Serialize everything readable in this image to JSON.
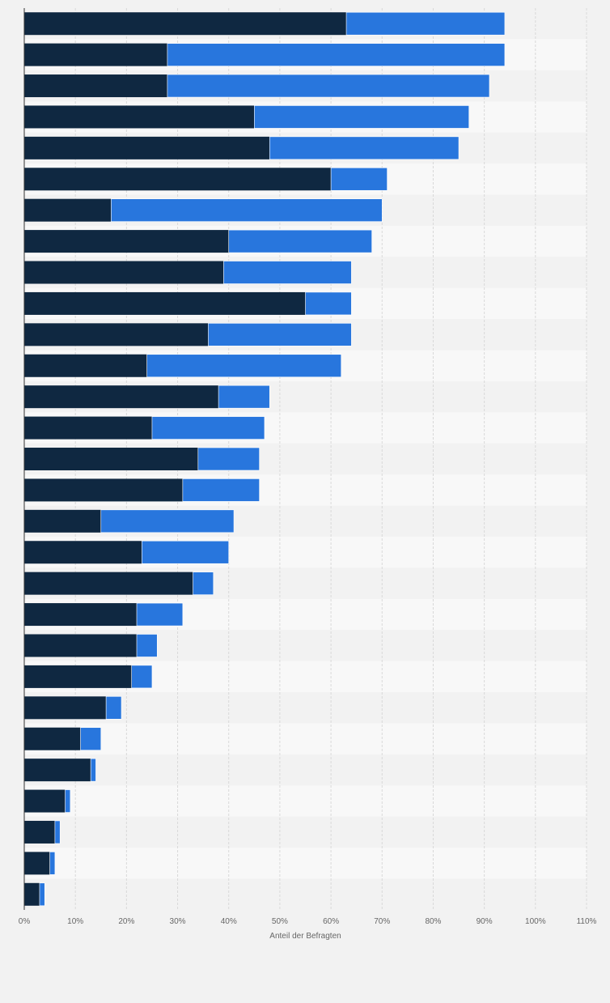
{
  "chart_data": {
    "type": "bar",
    "orientation": "horizontal",
    "stacked": true,
    "categories": [
      "",
      "",
      "",
      "",
      "",
      "",
      "",
      "",
      "",
      "",
      "",
      "",
      "",
      "",
      "",
      "",
      "",
      "",
      "",
      "",
      "",
      "",
      "",
      "",
      "",
      "",
      "",
      "",
      ""
    ],
    "series": [
      {
        "color": "#0f2841",
        "values": [
          63,
          28,
          28,
          45,
          48,
          60,
          17,
          40,
          39,
          55,
          36,
          24,
          38,
          25,
          34,
          31,
          15,
          23,
          33,
          22,
          22,
          21,
          16,
          11,
          13,
          8,
          6,
          5,
          3
        ]
      },
      {
        "color": "#2876dd",
        "values": [
          31,
          66,
          63,
          42,
          37,
          11,
          53,
          28,
          25,
          9,
          28,
          38,
          10,
          22,
          12,
          15,
          26,
          17,
          4,
          9,
          4,
          4,
          3,
          4,
          1,
          1,
          1,
          1,
          1
        ]
      }
    ],
    "xlabel": "Anteil der Befragten",
    "xlim": [
      0,
      110
    ],
    "x_ticks": [
      0,
      10,
      20,
      30,
      40,
      50,
      60,
      70,
      80,
      90,
      100,
      110
    ],
    "x_tick_labels": [
      "0%",
      "10%",
      "20%",
      "30%",
      "40%",
      "50%",
      "60%",
      "70%",
      "80%",
      "90%",
      "100%",
      "110%"
    ],
    "grid": true,
    "legend": false
  }
}
